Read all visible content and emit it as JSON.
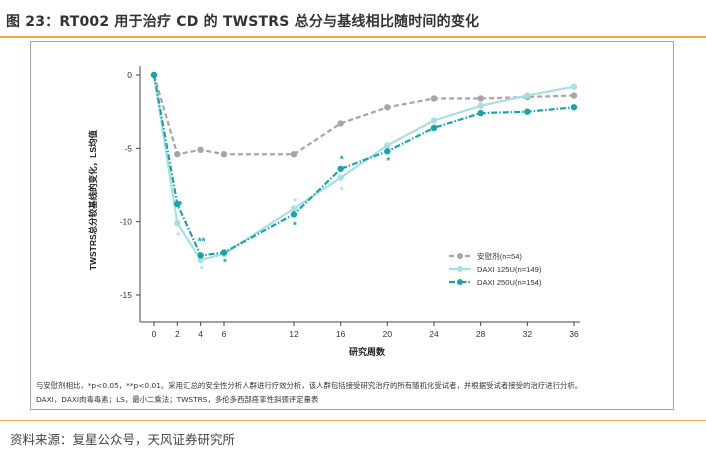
{
  "figure": {
    "title": "图 23：RT002 用于治疗 CD 的 TWSTRS 总分与基线相比随时间的变化",
    "source": "资料来源：复星公众号，天风证券研究所",
    "footnote_line1": "与安慰剂相比，*p<0.05，**p<0.01。采用汇总的安全性分析人群进行疗效分析，该人群包括接受研究治疗的所有随机化受试者，并根据受试者接受的治疗进行分析。",
    "footnote_line2": "DAXI，DAXI肉毒毒素；LS，最小二乘法；TWSTRS，多伦多西部痉挛性斜颈评定量表"
  },
  "colors": {
    "accent_rule": "#f0a84a",
    "placebo": "#a6a6a6",
    "daxi125": "#a8dfe3",
    "daxi250": "#1aa3ad",
    "axis": "#444444"
  },
  "chart_data": {
    "type": "line",
    "xlabel": "研究周数",
    "ylabel": "TWSTRS总分较基线的变化，LS均值",
    "x": [
      0,
      2,
      4,
      6,
      12,
      16,
      20,
      24,
      28,
      32,
      36
    ],
    "x_ticks": [
      "0",
      "2",
      "4",
      "6",
      "12",
      "16",
      "20",
      "24",
      "28",
      "32",
      "36"
    ],
    "y_ticks": [
      "0",
      "-5",
      "-10",
      "-15"
    ],
    "ylim": [
      -17.5,
      0.6
    ],
    "grid": false,
    "legend_position": "right-middle",
    "series": [
      {
        "name": "安慰剂(n=54)",
        "style": "dashed",
        "color": "#a6a6a6",
        "values": [
          0,
          -5.4,
          -5.1,
          -5.4,
          -5.4,
          -3.3,
          -2.2,
          -1.6,
          -1.6,
          -1.5,
          -1.4
        ]
      },
      {
        "name": "DAXI 125U(n=149)",
        "style": "solid",
        "color": "#a8dfe3",
        "values": [
          0,
          -10.1,
          -12.6,
          -12.2,
          -9.1,
          -7.0,
          -4.8,
          -3.1,
          -2.1,
          -1.4,
          -0.8
        ]
      },
      {
        "name": "DAXI 250U(n=154)",
        "style": "dashdot",
        "color": "#1aa3ad",
        "values": [
          0,
          -8.8,
          -12.3,
          -12.1,
          -9.5,
          -6.4,
          -5.2,
          -3.6,
          -2.6,
          -2.5,
          -2.2
        ]
      }
    ],
    "annotations": [
      {
        "x": 2,
        "y": -10.9,
        "text": "*",
        "series": 1
      },
      {
        "x": 4,
        "y": -13.2,
        "text": "*",
        "series": 1
      },
      {
        "x": 12,
        "y": -8.6,
        "text": "*",
        "series": 1
      },
      {
        "x": 16,
        "y": -7.8,
        "text": "*",
        "series": 1
      },
      {
        "x": 20,
        "y": -4.9,
        "text": "*",
        "series": 1
      },
      {
        "x": 2,
        "y": -8.8,
        "text": "**",
        "series": 2
      },
      {
        "x": 4,
        "y": -11.3,
        "text": "**",
        "series": 2
      },
      {
        "x": 6,
        "y": -12.7,
        "text": "*",
        "series": 2
      },
      {
        "x": 12,
        "y": -10.2,
        "text": "*",
        "series": 2
      },
      {
        "x": 16,
        "y": -5.7,
        "text": "*",
        "series": 2
      },
      {
        "x": 20,
        "y": -5.8,
        "text": "*",
        "series": 2
      }
    ]
  }
}
